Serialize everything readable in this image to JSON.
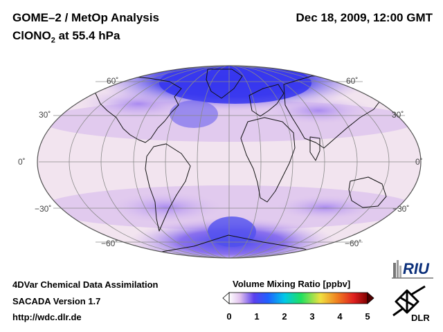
{
  "header": {
    "title": "GOME–2 / MetOp Analysis",
    "species_main": "ClONO",
    "species_sub": "2",
    "species_rest": " at 55.4 hPa",
    "datetime": "Dec 18, 2009, 12:00 GMT"
  },
  "map": {
    "projection": "Mollweide (global)",
    "lat_labels_left": [
      "60˚",
      "30˚",
      "0˚",
      "−30˚",
      "−60˚"
    ],
    "lat_labels_right": [
      "60˚",
      "30˚",
      "0˚",
      "−30˚",
      "−60˚"
    ],
    "features": [
      "high ClONO2 over Arctic",
      "high ClONO2 over Antarctica",
      "low values near equator"
    ]
  },
  "colorbar": {
    "title": "Volume Mixing Ratio [ppbv]",
    "ticks": [
      "0",
      "1",
      "2",
      "3",
      "4",
      "5"
    ],
    "range": [
      0,
      5
    ],
    "colors": [
      "#ffffff",
      "#e0c0ee",
      "#5a40ee",
      "#2060ff",
      "#00c8e8",
      "#20e060",
      "#f0e040",
      "#f08020",
      "#e02020",
      "#800000"
    ]
  },
  "footer": {
    "line1": "4DVar Chemical Data Assimilation",
    "line2": "SACADA Version 1.7",
    "line3": "http://wdc.dlr.de"
  },
  "logos": {
    "riu": "RIU",
    "dlr": "DLR"
  }
}
